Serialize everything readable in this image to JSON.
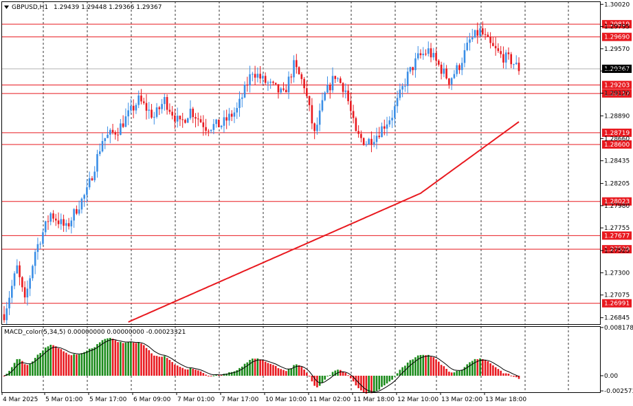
{
  "header": {
    "symbol": "GBPUSD,H1",
    "ohlc": "1.29439 1.29448 1.29366 1.29367"
  },
  "chart_data": {
    "type": "candlestick",
    "price_axis": {
      "range": [
        1.2678,
        1.3005
      ],
      "ticks": [
        "1.30020",
        "1.29795",
        "1.29570",
        "1.29345",
        "1.29120",
        "1.28890",
        "1.28660",
        "1.28435",
        "1.28205",
        "1.27980",
        "1.27755",
        "1.27525",
        "1.27300",
        "1.27075",
        "1.26845"
      ]
    },
    "current_price": "1.29367",
    "levels": [
      "1.29819",
      "1.29690",
      "1.29203",
      "1.29117",
      "1.28719",
      "1.28600",
      "1.28023",
      "1.27677",
      "1.27539",
      "1.26991"
    ],
    "time_axis": {
      "labels": [
        "4 Mar 2025",
        "5 Mar 01:00",
        "5 Mar 17:00",
        "6 Mar 09:00",
        "7 Mar 01:00",
        "7 Mar 17:00",
        "10 Mar 10:00",
        "11 Mar 02:00",
        "11 Mar 18:00",
        "12 Mar 10:00",
        "13 Mar 02:00",
        "13 Mar 18:00"
      ]
    },
    "colors": {
      "bull": "#3a8ee6",
      "bear": "#e8191f",
      "level": "#e8191f",
      "ma": "#e8191f",
      "macd_up": "#1a8a1a",
      "macd_down": "#e8191f",
      "signal": "#000000"
    },
    "indicator": {
      "label": "MACD_color(5,34,5) 0.00000000 0.00000000 -0.00023321",
      "ticks": [
        "0.0081784",
        "0.00",
        "-0.002573"
      ],
      "range": [
        -0.0028,
        0.0084
      ]
    },
    "candle_count": 200
  }
}
